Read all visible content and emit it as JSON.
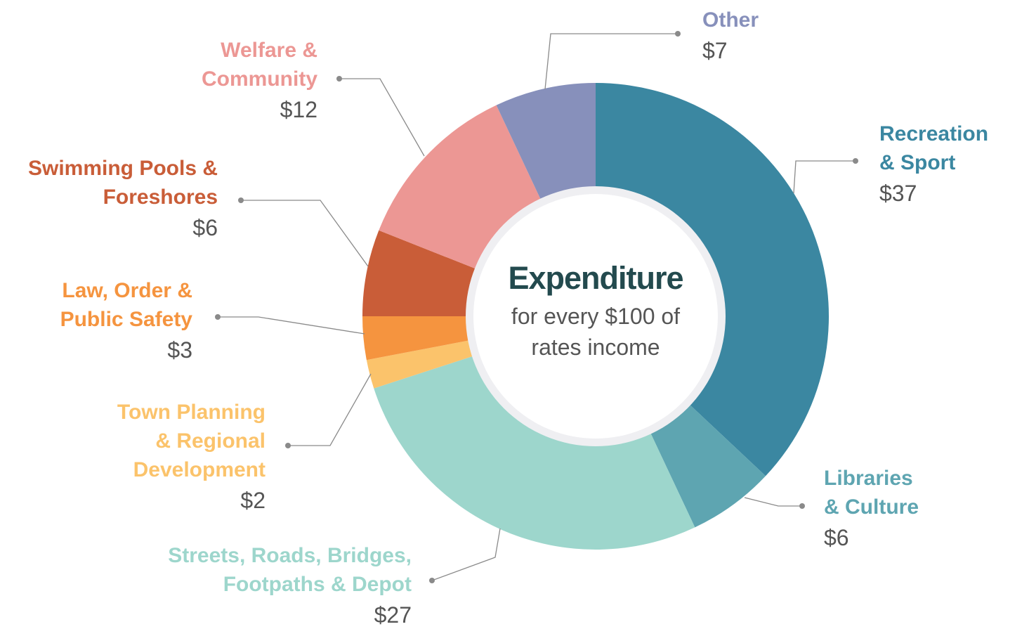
{
  "chart_data": {
    "type": "pie",
    "donut": true,
    "title": "Expenditure",
    "subtitle": "for every $100 of rates income",
    "categories": [
      "Recreation & Sport",
      "Libraries & Culture",
      "Streets, Roads, Bridges, Footpaths & Depot",
      "Town Planning & Regional Development",
      "Law, Order & Public Safety",
      "Swimming Pools & Foreshores",
      "Welfare & Community",
      "Other"
    ],
    "values": [
      37,
      6,
      27,
      2,
      3,
      6,
      12,
      7
    ],
    "value_labels": [
      "$37",
      "$6",
      "$27",
      "$2",
      "$3",
      "$6",
      "$12",
      "$7"
    ],
    "colors": [
      "#3b87a1",
      "#5ea5b1",
      "#9dd6cc",
      "#fbc36b",
      "#f5943f",
      "#c95d38",
      "#ec9794",
      "#8790bb"
    ]
  }
}
